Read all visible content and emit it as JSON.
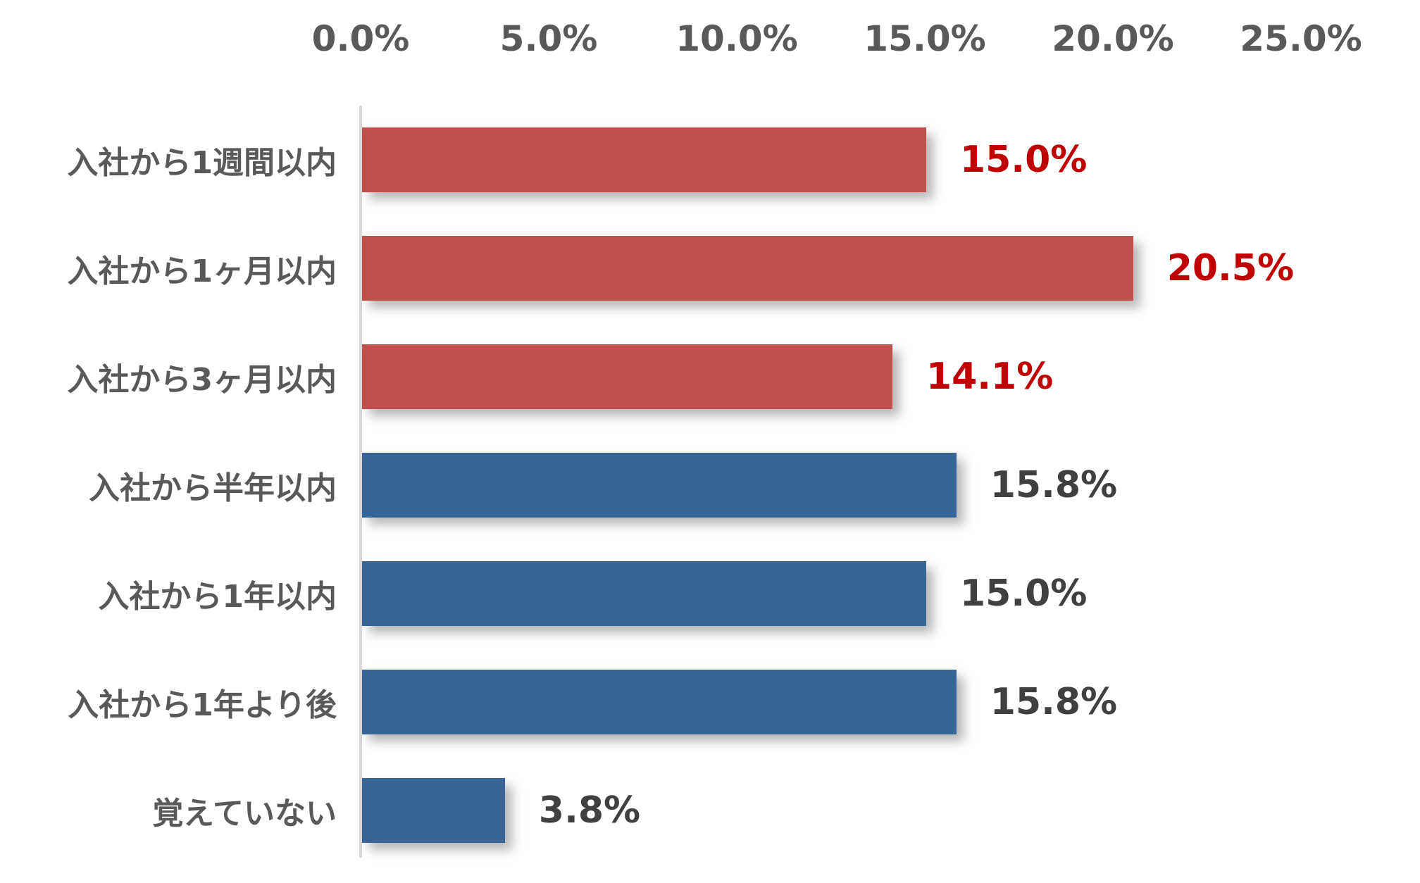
{
  "chart_data": {
    "type": "bar",
    "orientation": "horizontal",
    "title": "",
    "xlabel": "",
    "ylabel": "",
    "xlim": [
      0,
      25
    ],
    "grid": false,
    "legend": false,
    "axis_position": "top",
    "x_ticks": [
      "0.0%",
      "5.0%",
      "10.0%",
      "15.0%",
      "20.0%",
      "25.0%"
    ],
    "categories": [
      "入社から1週間以内",
      "入社から1ヶ月以内",
      "入社から3ヶ月以内",
      "入社から半年以内",
      "入社から1年以内",
      "入社から1年より後",
      "覚えていない"
    ],
    "values": [
      15.0,
      20.5,
      14.1,
      15.8,
      15.0,
      15.8,
      3.8
    ],
    "value_labels": [
      "15.0%",
      "20.5%",
      "14.1%",
      "15.8%",
      "15.0%",
      "15.8%",
      "3.8%"
    ],
    "bar_colors": [
      "#C0504D",
      "#C0504D",
      "#C0504D",
      "#376596",
      "#376596",
      "#376596",
      "#376596"
    ],
    "value_label_colors": [
      "#C00000",
      "#C00000",
      "#C00000",
      "#404040",
      "#404040",
      "#404040",
      "#404040"
    ]
  },
  "colors": {
    "background": "#FFFFFF",
    "axis_text": "#595959",
    "category_text": "#595959",
    "axis_line": "#D9D9D9",
    "red_bar": "#C0504D",
    "blue_bar": "#376596",
    "red_value_text": "#C00000",
    "gray_value_text": "#404040"
  }
}
